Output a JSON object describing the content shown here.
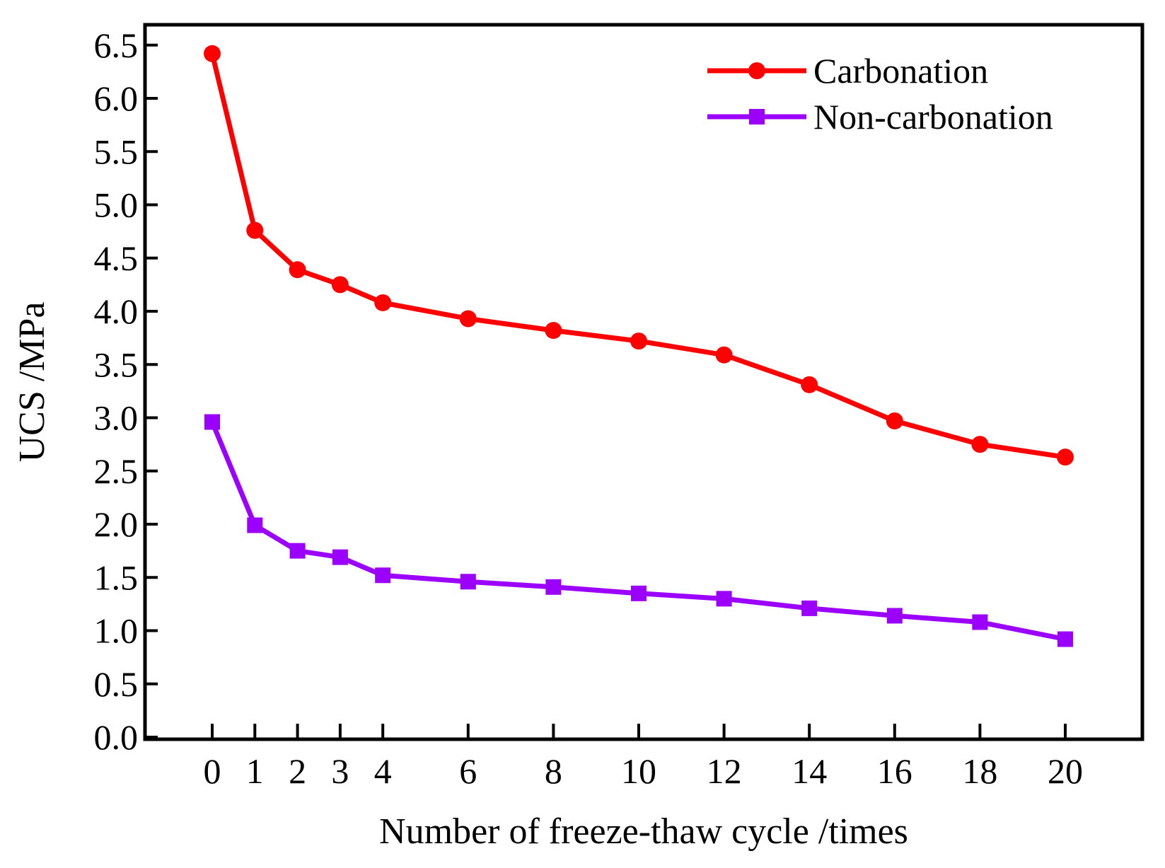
{
  "chart_data": {
    "type": "line",
    "title": "",
    "xlabel": "Number of freeze-thaw cycle /times",
    "ylabel": "UCS /MPa",
    "x": [
      0,
      1,
      2,
      3,
      4,
      6,
      8,
      10,
      12,
      14,
      16,
      18,
      20
    ],
    "xticks": [
      "0",
      "1",
      "2",
      "3",
      "4",
      "6",
      "8",
      "10",
      "12",
      "14",
      "16",
      "18",
      "20"
    ],
    "ylim": [
      0,
      6.7
    ],
    "yticks": [
      "0.0",
      "0.5",
      "1.0",
      "1.5",
      "2.0",
      "2.5",
      "3.0",
      "3.5",
      "4.0",
      "4.5",
      "5.0",
      "5.5",
      "6.0",
      "6.5"
    ],
    "grid": false,
    "legend_position": "top-right",
    "series": [
      {
        "name": "Carbonation",
        "color": "#ff0000",
        "marker": "circle",
        "values": [
          6.42,
          4.76,
          4.39,
          4.25,
          4.08,
          3.93,
          3.82,
          3.72,
          3.59,
          3.31,
          2.97,
          2.75,
          2.63
        ]
      },
      {
        "name": "Non-carbonation",
        "color": "#9b00ff",
        "marker": "square",
        "values": [
          2.96,
          1.99,
          1.75,
          1.69,
          1.52,
          1.46,
          1.41,
          1.35,
          1.3,
          1.21,
          1.14,
          1.08,
          0.92
        ]
      }
    ]
  }
}
